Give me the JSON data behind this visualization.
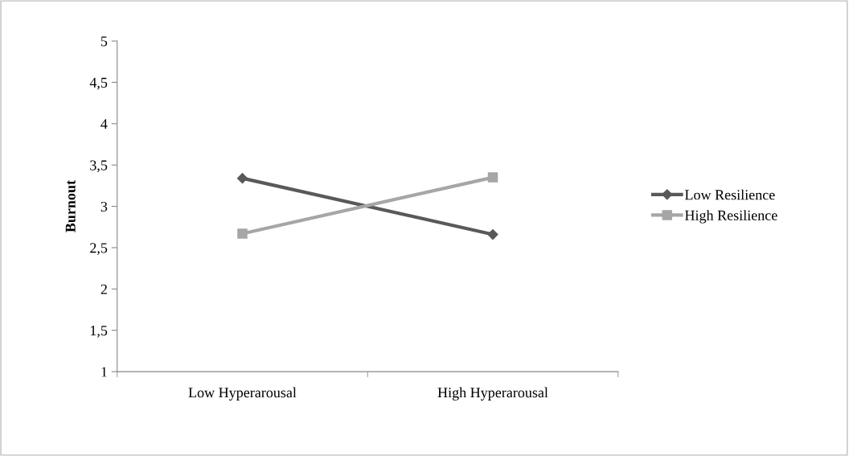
{
  "chart_data": {
    "type": "line",
    "ylabel": "Burnout",
    "categories": [
      "Low Hyperarousal",
      "High Hyperarousal"
    ],
    "series": [
      {
        "name": "Low Resilience",
        "color": "#595959",
        "values": [
          3.34,
          2.66
        ],
        "marker": "diamond"
      },
      {
        "name": "High Resilience",
        "color": "#a6a6a6",
        "values": [
          2.67,
          3.35
        ],
        "marker": "square"
      }
    ],
    "ylim": [
      1,
      5
    ],
    "yticks": [
      1,
      {
        "value": 1.5,
        "label": "1,5"
      },
      2,
      {
        "value": 2.5,
        "label": "2,5"
      },
      3,
      {
        "value": 3.5,
        "label": "3,5"
      },
      4,
      {
        "value": 4.5,
        "label": "4,5"
      },
      5
    ],
    "grid": false,
    "legend": "right",
    "line_style": "solid"
  }
}
